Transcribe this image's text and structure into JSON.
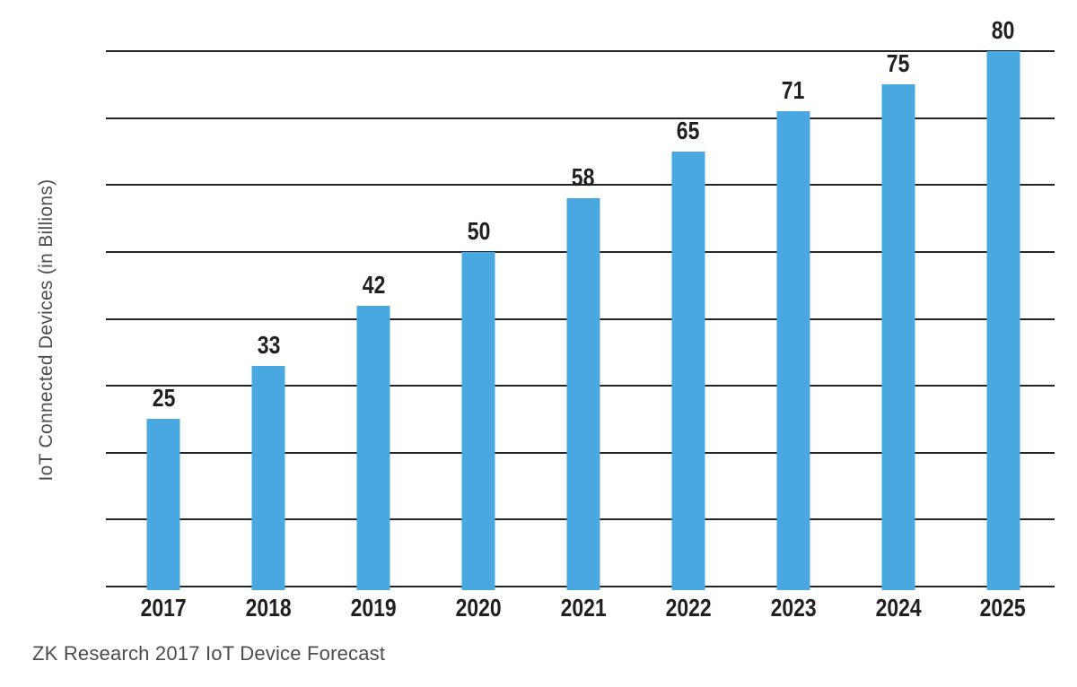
{
  "chart_data": {
    "type": "bar",
    "title": "",
    "categories": [
      "2017",
      "2018",
      "2019",
      "2020",
      "2021",
      "2022",
      "2023",
      "2024",
      "2025"
    ],
    "values": [
      25,
      33,
      42,
      50,
      58,
      65,
      71,
      75,
      80
    ],
    "ylabel": "IoT Connected Devices (in Billions)",
    "xlabel": "",
    "ylim": [
      0,
      80
    ],
    "ytick_step": 10,
    "ytick_labels_visible": false,
    "grid": "horizontal",
    "legend": "none",
    "value_labels": "above bars",
    "source_note": "ZK Research 2017 IoT Device Forecast",
    "bar_color": "#4AA8E0",
    "gridline_color": "#242424",
    "value_label_color": "#231F20",
    "axis_text_color": "#4C4C4E"
  }
}
